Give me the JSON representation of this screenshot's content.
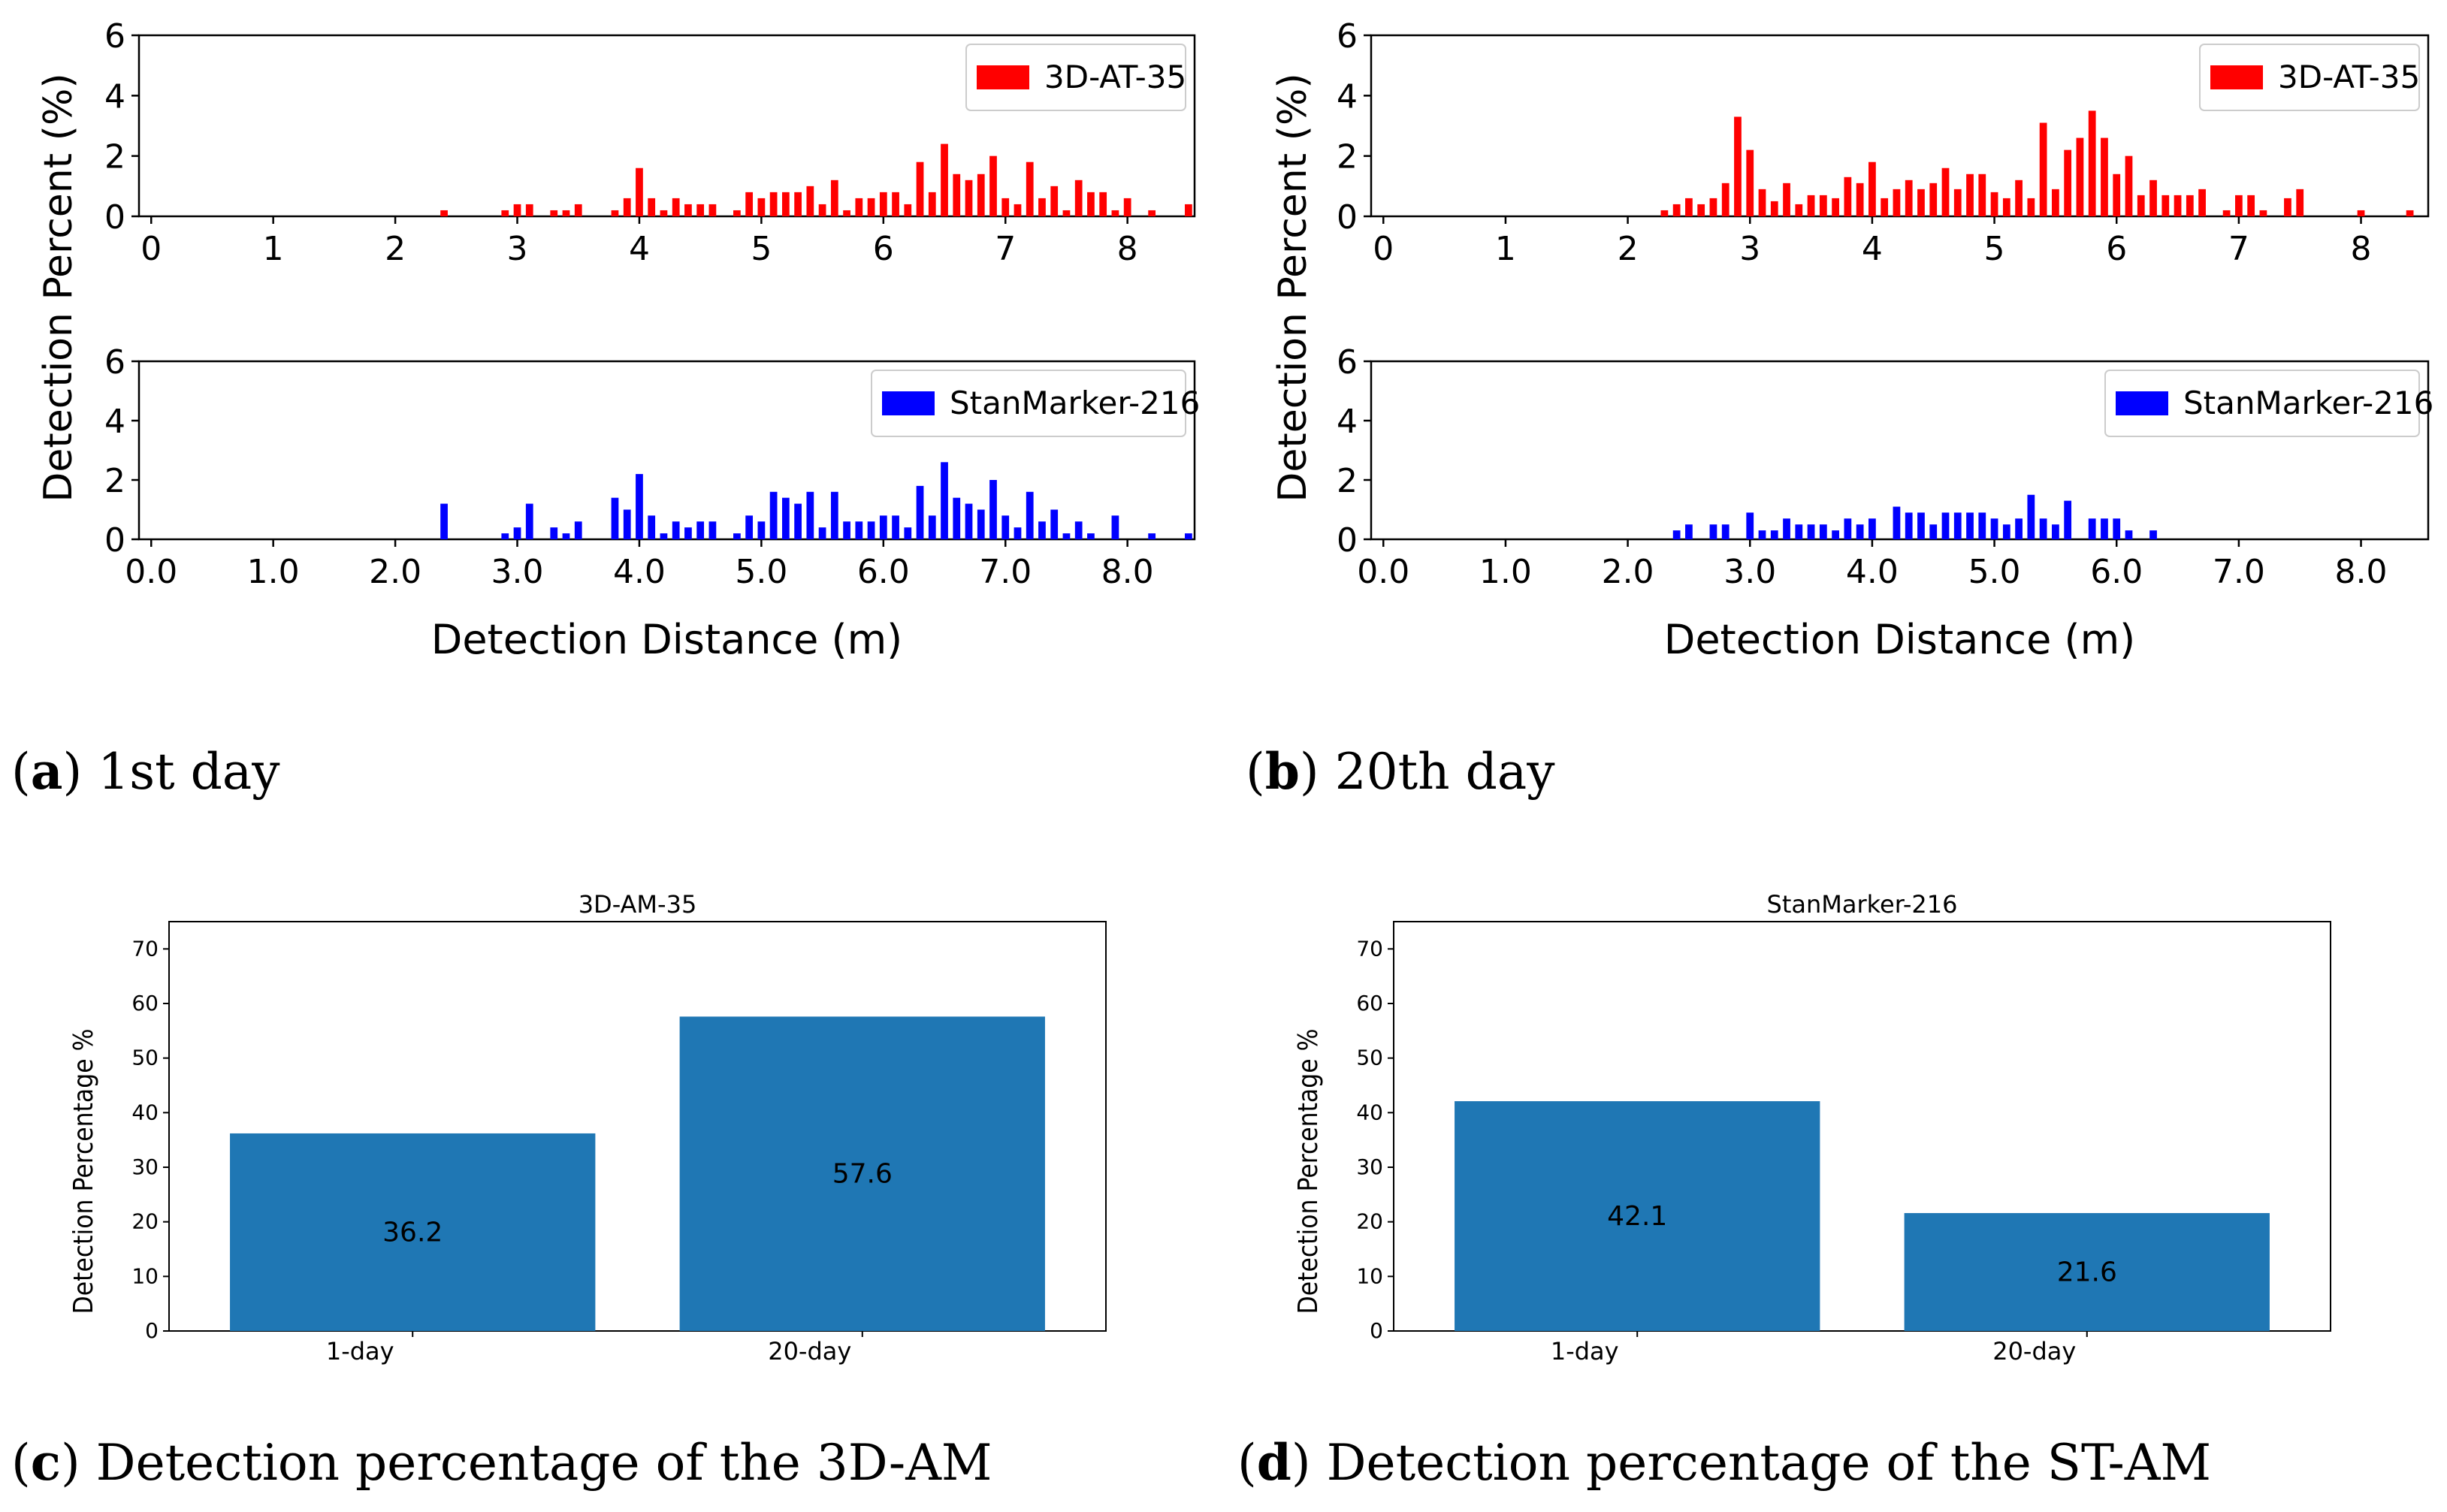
{
  "captions": [
    {
      "letter": "a",
      "text": ") 1st day"
    },
    {
      "letter": "b",
      "text": ") 20th day"
    },
    {
      "letter": "c",
      "text": ") Detection percentage of the 3D-AM"
    },
    {
      "letter": "d",
      "text": ") Detection percentage of the ST-AM"
    }
  ],
  "colors": {
    "red": "#ff0000",
    "blue": "#0000ff",
    "steel": "#1f77b4"
  },
  "chart_data": [
    {
      "id": "a_top",
      "type": "bar",
      "panel": "a",
      "legend": "3D-AT-35",
      "legend_position": "top-right",
      "color": "#ff0000",
      "ylabel": "Detection Percent (%)",
      "xlabel": "",
      "xlim": [
        -0.1,
        8.55
      ],
      "ylim": [
        0,
        6
      ],
      "xticks": [
        0,
        1,
        2,
        3,
        4,
        5,
        6,
        7,
        8
      ],
      "xtick_labels": [
        "0",
        "1",
        "2",
        "3",
        "4",
        "5",
        "6",
        "7",
        "8"
      ],
      "yticks": [
        0,
        2,
        4,
        6
      ],
      "ytick_labels": [
        "0",
        "2",
        "4",
        "6"
      ],
      "x": [
        2.4,
        2.9,
        3.0,
        3.1,
        3.3,
        3.4,
        3.5,
        3.8,
        3.9,
        4.0,
        4.1,
        4.2,
        4.3,
        4.4,
        4.5,
        4.6,
        4.8,
        4.9,
        5.0,
        5.1,
        5.2,
        5.3,
        5.4,
        5.5,
        5.6,
        5.7,
        5.8,
        5.9,
        6.0,
        6.1,
        6.2,
        6.3,
        6.4,
        6.5,
        6.6,
        6.7,
        6.8,
        6.9,
        7.0,
        7.1,
        7.2,
        7.3,
        7.4,
        7.5,
        7.6,
        7.7,
        7.8,
        7.9,
        8.0,
        8.2,
        8.5
      ],
      "values": [
        0.2,
        0.2,
        0.4,
        0.4,
        0.2,
        0.2,
        0.4,
        0.2,
        0.6,
        1.6,
        0.6,
        0.2,
        0.6,
        0.4,
        0.4,
        0.4,
        0.2,
        0.8,
        0.6,
        0.8,
        0.8,
        0.8,
        1.0,
        0.4,
        1.2,
        0.2,
        0.6,
        0.6,
        0.8,
        0.8,
        0.4,
        1.8,
        0.8,
        2.4,
        1.4,
        1.2,
        1.4,
        2.0,
        0.6,
        0.4,
        1.8,
        0.6,
        1.0,
        0.2,
        1.2,
        0.8,
        0.8,
        0.2,
        0.6,
        0.2,
        0.4
      ]
    },
    {
      "id": "a_bottom",
      "type": "bar",
      "panel": "a",
      "legend": "StanMarker-216",
      "legend_position": "top-right",
      "color": "#0000ff",
      "ylabel": "",
      "xlabel": "Detection Distance (m)",
      "xlim": [
        -0.1,
        8.55
      ],
      "ylim": [
        0,
        6
      ],
      "xticks": [
        0,
        1,
        2,
        3,
        4,
        5,
        6,
        7,
        8
      ],
      "xtick_labels": [
        "0.0",
        "1.0",
        "2.0",
        "3.0",
        "4.0",
        "5.0",
        "6.0",
        "7.0",
        "8.0"
      ],
      "yticks": [
        0,
        2,
        4,
        6
      ],
      "ytick_labels": [
        "0",
        "2",
        "4",
        "6"
      ],
      "x": [
        2.4,
        2.9,
        3.0,
        3.1,
        3.3,
        3.4,
        3.5,
        3.8,
        3.9,
        4.0,
        4.1,
        4.2,
        4.3,
        4.4,
        4.5,
        4.6,
        4.8,
        4.9,
        5.0,
        5.1,
        5.2,
        5.3,
        5.4,
        5.5,
        5.6,
        5.7,
        5.8,
        5.9,
        6.0,
        6.1,
        6.2,
        6.3,
        6.4,
        6.5,
        6.6,
        6.7,
        6.8,
        6.9,
        7.0,
        7.1,
        7.2,
        7.3,
        7.4,
        7.5,
        7.6,
        7.7,
        7.9,
        8.2,
        8.5
      ],
      "values": [
        1.2,
        0.2,
        0.4,
        1.2,
        0.4,
        0.2,
        0.6,
        1.4,
        1.0,
        2.2,
        0.8,
        0.2,
        0.6,
        0.4,
        0.6,
        0.6,
        0.2,
        0.8,
        0.6,
        1.6,
        1.4,
        1.2,
        1.6,
        0.4,
        1.6,
        0.6,
        0.6,
        0.6,
        0.8,
        0.8,
        0.4,
        1.8,
        0.8,
        2.6,
        1.4,
        1.2,
        1.0,
        2.0,
        0.8,
        0.4,
        1.6,
        0.6,
        1.0,
        0.2,
        0.6,
        0.2,
        0.8,
        0.2,
        0.2
      ]
    },
    {
      "id": "b_top",
      "type": "bar",
      "panel": "b",
      "legend": "3D-AT-35",
      "legend_position": "top-right",
      "color": "#ff0000",
      "ylabel": "Detection Percent (%)",
      "xlabel": "",
      "xlim": [
        -0.1,
        8.55
      ],
      "ylim": [
        0,
        6
      ],
      "xticks": [
        0,
        1,
        2,
        3,
        4,
        5,
        6,
        7,
        8
      ],
      "xtick_labels": [
        "0",
        "1",
        "2",
        "3",
        "4",
        "5",
        "6",
        "7",
        "8"
      ],
      "yticks": [
        0,
        2,
        4,
        6
      ],
      "ytick_labels": [
        "0",
        "2",
        "4",
        "6"
      ],
      "x": [
        2.3,
        2.4,
        2.5,
        2.6,
        2.7,
        2.8,
        2.9,
        3.0,
        3.1,
        3.2,
        3.3,
        3.4,
        3.5,
        3.6,
        3.7,
        3.8,
        3.9,
        4.0,
        4.1,
        4.2,
        4.3,
        4.4,
        4.5,
        4.6,
        4.7,
        4.8,
        4.9,
        5.0,
        5.1,
        5.2,
        5.3,
        5.4,
        5.5,
        5.6,
        5.7,
        5.8,
        5.9,
        6.0,
        6.1,
        6.2,
        6.3,
        6.4,
        6.5,
        6.6,
        6.7,
        6.9,
        7.0,
        7.1,
        7.2,
        7.4,
        7.5,
        8.0,
        8.4
      ],
      "values": [
        0.2,
        0.4,
        0.6,
        0.4,
        0.6,
        1.1,
        3.3,
        2.2,
        0.9,
        0.5,
        1.1,
        0.4,
        0.7,
        0.7,
        0.6,
        1.3,
        1.1,
        1.8,
        0.6,
        0.9,
        1.2,
        0.9,
        1.1,
        1.6,
        0.9,
        1.4,
        1.4,
        0.8,
        0.6,
        1.2,
        0.6,
        3.1,
        0.9,
        2.2,
        2.6,
        3.5,
        2.6,
        1.4,
        2.0,
        0.7,
        1.2,
        0.7,
        0.7,
        0.7,
        0.9,
        0.2,
        0.7,
        0.7,
        0.2,
        0.6,
        0.9,
        0.2,
        0.2
      ]
    },
    {
      "id": "b_bottom",
      "type": "bar",
      "panel": "b",
      "legend": "StanMarker-216",
      "legend_position": "top-right",
      "color": "#0000ff",
      "ylabel": "Detection Percent (%)",
      "xlabel": "Detection Distance (m)",
      "xlim": [
        -0.1,
        8.55
      ],
      "ylim": [
        0,
        6
      ],
      "xticks": [
        0,
        1,
        2,
        3,
        4,
        5,
        6,
        7,
        8
      ],
      "xtick_labels": [
        "0.0",
        "1.0",
        "2.0",
        "3.0",
        "4.0",
        "5.0",
        "6.0",
        "7.0",
        "8.0"
      ],
      "yticks": [
        0,
        2,
        4,
        6
      ],
      "ytick_labels": [
        "0",
        "2",
        "4",
        "6"
      ],
      "x": [
        2.4,
        2.5,
        2.7,
        2.8,
        3.0,
        3.1,
        3.2,
        3.3,
        3.4,
        3.5,
        3.6,
        3.7,
        3.8,
        3.9,
        4.0,
        4.2,
        4.3,
        4.4,
        4.5,
        4.6,
        4.7,
        4.8,
        4.9,
        5.0,
        5.1,
        5.2,
        5.3,
        5.4,
        5.5,
        5.6,
        5.8,
        5.9,
        6.0,
        6.1,
        6.3
      ],
      "values": [
        0.3,
        0.5,
        0.5,
        0.5,
        0.9,
        0.3,
        0.3,
        0.7,
        0.5,
        0.5,
        0.5,
        0.3,
        0.7,
        0.5,
        0.7,
        1.1,
        0.9,
        0.9,
        0.5,
        0.9,
        0.9,
        0.9,
        0.9,
        0.7,
        0.5,
        0.7,
        1.5,
        0.7,
        0.5,
        1.3,
        0.7,
        0.7,
        0.7,
        0.3,
        0.3
      ]
    },
    {
      "id": "c_summary",
      "type": "bar",
      "panel": "c",
      "title": "3D-AM-35",
      "color": "#1f77b4",
      "ylabel": "Detection Percentage %",
      "xlabel": "",
      "categories": [
        "1-day",
        "20-day"
      ],
      "values": [
        36.2,
        57.6
      ],
      "data_labels": [
        "36.2",
        "57.6"
      ],
      "ylim": [
        0,
        75
      ],
      "yticks": [
        0,
        10,
        20,
        30,
        40,
        50,
        60,
        70
      ],
      "ytick_labels": [
        "0",
        "10",
        "20",
        "30",
        "40",
        "50",
        "60",
        "70"
      ]
    },
    {
      "id": "d_summary",
      "type": "bar",
      "panel": "d",
      "title": "StanMarker-216",
      "color": "#1f77b4",
      "ylabel": "Detection Percentage %",
      "xlabel": "",
      "categories": [
        "1-day",
        "20-day"
      ],
      "values": [
        42.1,
        21.6
      ],
      "data_labels": [
        "42.1",
        "21.6"
      ],
      "ylim": [
        0,
        75
      ],
      "yticks": [
        0,
        10,
        20,
        30,
        40,
        50,
        60,
        70
      ],
      "ytick_labels": [
        "0",
        "10",
        "20",
        "30",
        "40",
        "50",
        "60",
        "70"
      ]
    }
  ]
}
